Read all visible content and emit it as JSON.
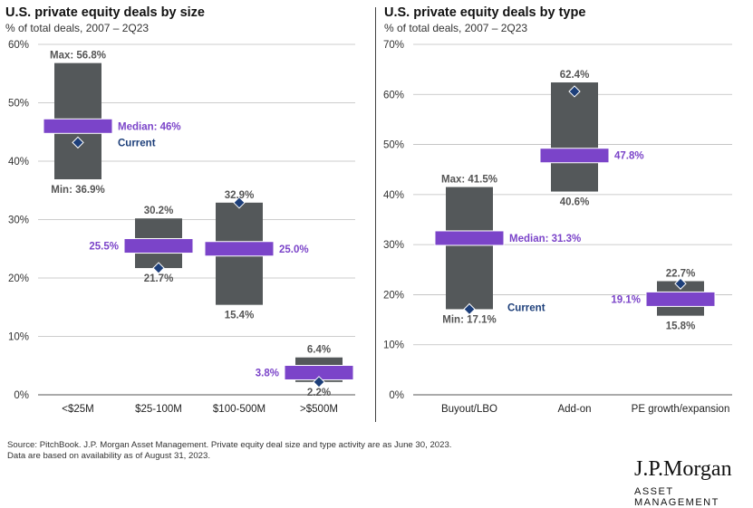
{
  "colors": {
    "range_box": "#54585a",
    "median": "#7b44c9",
    "current": "#1d3f7a",
    "axis_text": "#333333",
    "grid": "#bdbdbd"
  },
  "chart_data": [
    {
      "type": "range",
      "title": "U.S. private equity deals by size",
      "subtitle": "% of total deals, 2007 – 2Q23",
      "categories": [
        "<$25M",
        "$25-100M",
        "$100-500M",
        ">$500M"
      ],
      "ylim": [
        0,
        60
      ],
      "yticks": [
        "0%",
        "10%",
        "20%",
        "30%",
        "40%",
        "50%",
        "60%"
      ],
      "grid": true,
      "series": [
        {
          "name": "Max",
          "values": [
            56.8,
            30.2,
            32.9,
            6.4
          ]
        },
        {
          "name": "Min",
          "values": [
            36.9,
            21.7,
            15.4,
            2.2
          ]
        },
        {
          "name": "Median",
          "values": [
            46.0,
            25.5,
            25.0,
            3.8
          ]
        },
        {
          "name": "Current",
          "values": [
            43.2,
            21.7,
            32.9,
            2.2
          ]
        }
      ],
      "labels": {
        "max": [
          "Max: 56.8%",
          "30.2%",
          "32.9%",
          "6.4%"
        ],
        "min": [
          "Min: 36.9%",
          "21.7%",
          "15.4%",
          "2.2%"
        ],
        "median": [
          "Median: 46%",
          "25.5%",
          "25.0%",
          "3.8%"
        ],
        "current": [
          "Current",
          "",
          "",
          ""
        ]
      }
    },
    {
      "type": "range",
      "title": "U.S. private equity deals by type",
      "subtitle": "% of total deals, 2007 – 2Q23",
      "categories": [
        "Buyout/LBO",
        "Add-on",
        "PE growth/expansion"
      ],
      "ylim": [
        0,
        70
      ],
      "yticks": [
        "0%",
        "10%",
        "20%",
        "30%",
        "40%",
        "50%",
        "60%",
        "70%"
      ],
      "grid": true,
      "series": [
        {
          "name": "Max",
          "values": [
            41.5,
            62.4,
            22.7
          ]
        },
        {
          "name": "Min",
          "values": [
            17.1,
            40.6,
            15.8
          ]
        },
        {
          "name": "Median",
          "values": [
            31.3,
            47.8,
            19.1
          ]
        },
        {
          "name": "Current",
          "values": [
            17.1,
            60.6,
            22.2
          ]
        }
      ],
      "labels": {
        "max": [
          "Max: 41.5%",
          "62.4%",
          "22.7%"
        ],
        "min": [
          "Min: 17.1%",
          "40.6%",
          "15.8%"
        ],
        "median": [
          "Median: 31.3%",
          "47.8%",
          "19.1%"
        ],
        "current": [
          "Current",
          "",
          ""
        ]
      }
    }
  ],
  "source": {
    "line1": "Source: PitchBook. J.P. Morgan Asset Management. Private equity deal size and type activity are  as June 30, 2023.",
    "line2": "Data are based on availability as of August 31, 2023."
  },
  "logo": {
    "name": "J.P.Morgan",
    "tagline": "ASSET MANAGEMENT"
  }
}
